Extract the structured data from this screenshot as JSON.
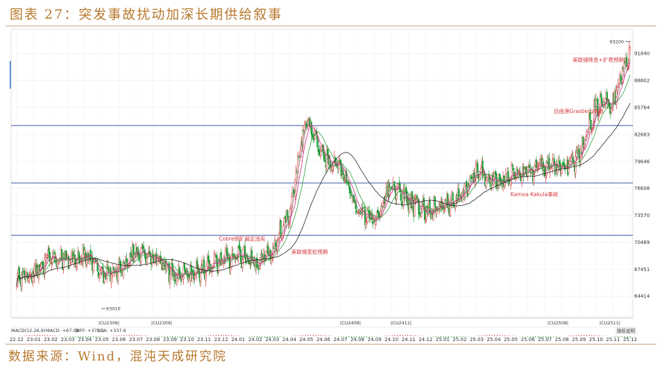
{
  "figure": {
    "title": "图表 27：突发事故扰动加深长期供给叙事",
    "source": "数据来源：Wind，混沌天成研究院"
  },
  "colors": {
    "title": "#b8792e",
    "up": "#d2383c",
    "down": "#1f9e3a",
    "hline": "#3b55a8",
    "ma5": "#8a8a8a",
    "ma10": "#c8287a",
    "ma20": "#2e9e3a",
    "ma60": "#222222",
    "annotation": "#d2383c"
  },
  "chart_data": {
    "type": "line",
    "subtype": "candlestick",
    "y_ticks": [
      64414,
      67451,
      70489,
      73570,
      76608,
      79646,
      82683,
      85764,
      88802,
      91840
    ],
    "ylim": [
      62000,
      94600
    ],
    "x_ticks": [
      "22.12",
      "23.01",
      "23.02",
      "23.03",
      "23.04",
      "23.05",
      "23.06",
      "23.07",
      "23.08",
      "23.09",
      "23.10",
      "23.11",
      "23.12",
      "24.01",
      "24.02",
      "24.03",
      "24.04",
      "24.05",
      "24.06",
      "24.07",
      "24.08",
      "24.09",
      "24.10",
      "24.11",
      "24.12",
      "25.01",
      "25.02",
      "25.03",
      "25.04",
      "25.05",
      "25.06",
      "25.07",
      "25.08",
      "25.09",
      "25.10",
      "25.11",
      "25.12"
    ],
    "series": [
      {
        "name": "",
        "x": [
          "22.12",
          "23.01",
          "23.02",
          "23.03",
          "23.04",
          "23.05",
          "23.06",
          "23.07",
          "23.08",
          "23.09",
          "23.10",
          "23.11",
          "23.12",
          "24.01",
          "24.02",
          "24.03",
          "24.04",
          "24.05",
          "24.06",
          "24.07",
          "24.08",
          "24.09",
          "24.10",
          "24.11",
          "24.12",
          "25.01",
          "25.02",
          "25.03",
          "25.04",
          "25.05",
          "25.06",
          "25.07",
          "25.08",
          "25.09",
          "25.10",
          "25.11",
          "25.12"
        ],
        "y": [
          66500,
          67000,
          69000,
          68500,
          69000,
          67000,
          67500,
          69500,
          69000,
          67000,
          66800,
          67500,
          68500,
          69000,
          68000,
          69500,
          74000,
          84500,
          80000,
          79000,
          74000,
          73000,
          77000,
          75000,
          74000,
          74500,
          75500,
          78500,
          77500,
          78000,
          78500,
          79000,
          79000,
          80000,
          86000,
          86500,
          92500
        ]
      }
    ],
    "h_lines": [
      71300,
      77200,
      83700
    ],
    "callouts": [
      "93200",
      "63010"
    ],
    "annotations": [
      "美联储降息+扩表预期",
      "自由港Grasberg事故",
      "Kamoa-Kakula事故",
      "Cobre铜矿裁定违宪",
      "美联储宽松预期"
    ],
    "contract_labels": [
      "CU2306",
      "CU2309",
      "CU2408",
      "CU2411",
      "CU2508",
      "CU2511"
    ],
    "indicator": {
      "header": "MACD(12,26,9)",
      "macd": "MACD: +67.08",
      "diff": "DIFF: +371.1",
      "dea": "DEA: +337.6"
    },
    "indicator_button": "指标说明"
  }
}
